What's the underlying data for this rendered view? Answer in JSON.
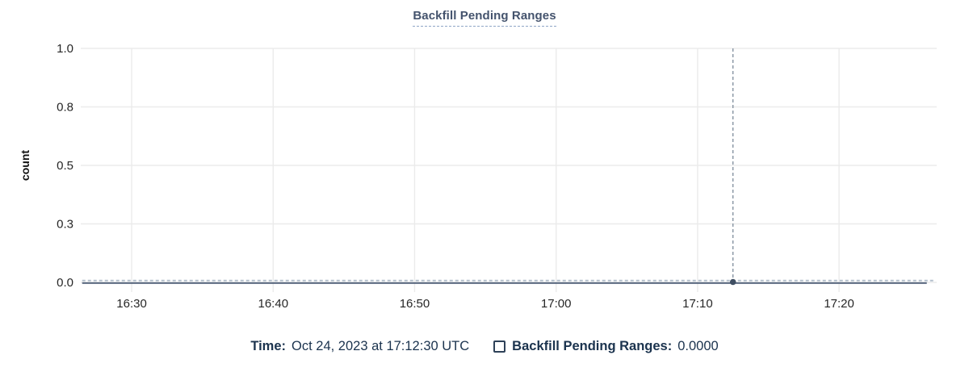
{
  "header": {
    "title": "Backfill Pending Ranges"
  },
  "chart_data": {
    "type": "line",
    "title": "Backfill Pending Ranges",
    "xlabel": "",
    "ylabel": "count",
    "grid": true,
    "grid_color": "#ebebeb",
    "ylim": [
      0,
      1
    ],
    "y_tick_labels": [
      "1.0",
      "0.8",
      "0.5",
      "0.3",
      "0.0"
    ],
    "y_tick_values": [
      1.0,
      0.75,
      0.5,
      0.25,
      0.0
    ],
    "x_tick_labels": [
      "16:30",
      "16:40",
      "16:50",
      "17:00",
      "17:10",
      "17:20"
    ],
    "x_tick_minutes": [
      990,
      1000,
      1010,
      1020,
      1030,
      1040
    ],
    "x_domain_minutes": [
      986.4,
      1046.9
    ],
    "legend_position": "bottom",
    "series": [
      {
        "name": "Backfill Pending Ranges",
        "flat_value": 0,
        "x_minutes": [
          986.5,
          1046.2
        ],
        "values": [
          0,
          0
        ],
        "color_solid": "#4d5d76",
        "color_dashed_overlay": "#b3bfcc"
      }
    ],
    "crosshair": {
      "time_label": "17:12:30",
      "time_minutes": 1032.5,
      "value": 0,
      "line_color": "#7e8c9b",
      "dot_color": "#3f4f63"
    },
    "axis_text_color": "#262626"
  },
  "legend": {
    "time_label": "Time:",
    "time_value": "Oct 24, 2023 at 17:12:30 UTC",
    "series_label": "Backfill Pending Ranges:",
    "series_value": "0.0000"
  }
}
